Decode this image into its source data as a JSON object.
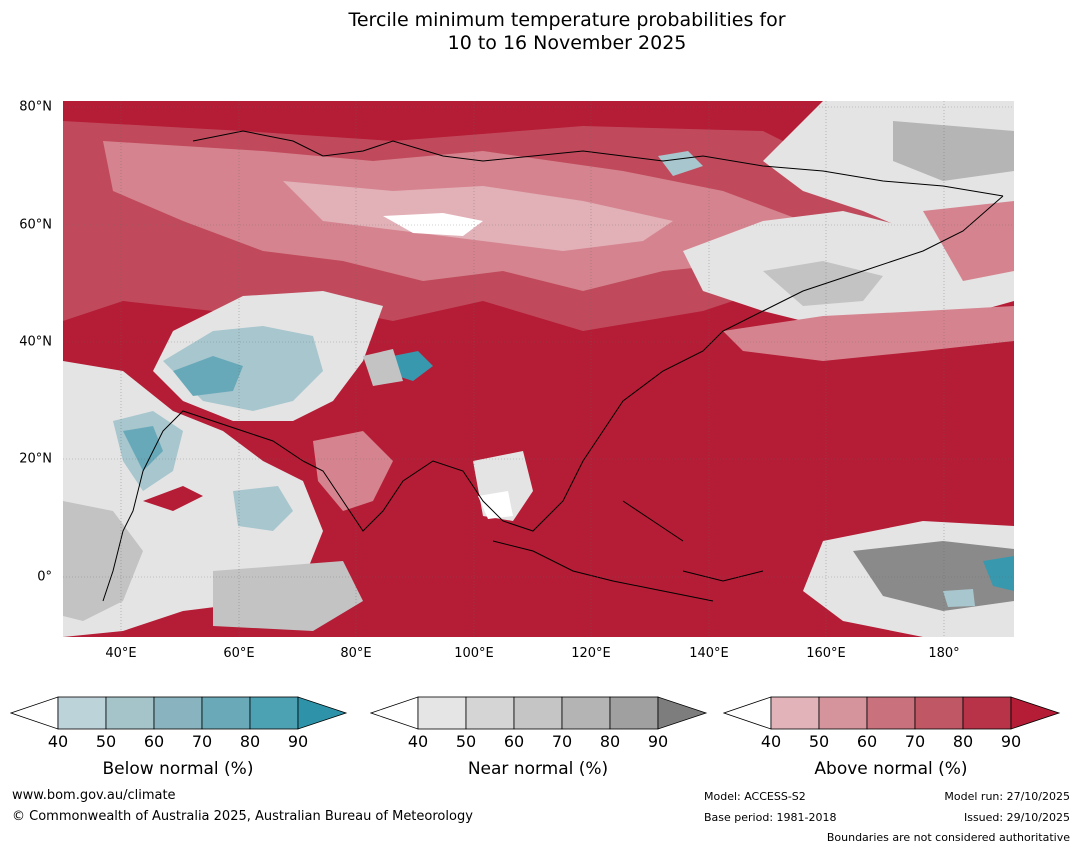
{
  "title": {
    "line1": "Tercile minimum temperature probabilities for",
    "line2": "10 to 16 November 2025"
  },
  "map": {
    "lat_labels": [
      "80°N",
      "60°N",
      "40°N",
      "20°N",
      "0°"
    ],
    "lon_labels": [
      "40°E",
      "60°E",
      "80°E",
      "100°E",
      "120°E",
      "140°E",
      "160°E",
      "180°"
    ],
    "colors": {
      "ocean_hot": "#b51c35",
      "warm": "#c04a5c",
      "warm_light": "#d5848f",
      "pink": "#e2b1b8",
      "near_light": "#e4e4e4",
      "near_mid": "#c3c3c3",
      "near_dark": "#8a8a8a",
      "cool_light": "#a7c6cd",
      "cool_mid": "#68a9b9",
      "cool_dark": "#3898ae",
      "white": "#ffffff"
    }
  },
  "colorbars": [
    {
      "label": "Below normal (%)",
      "ticks": [
        "40",
        "50",
        "60",
        "70",
        "80",
        "90"
      ],
      "colors": [
        "#ffffff",
        "#bdd3da",
        "#a5c4ca",
        "#88b3bf",
        "#6aaab8",
        "#4ca2b3",
        "#2e93a9"
      ]
    },
    {
      "label": "Near normal (%)",
      "ticks": [
        "40",
        "50",
        "60",
        "70",
        "80",
        "90"
      ],
      "colors": [
        "#ffffff",
        "#e5e5e5",
        "#d5d5d5",
        "#c5c5c5",
        "#b4b4b4",
        "#a0a0a0",
        "#7d7d7d"
      ]
    },
    {
      "label": "Above normal (%)",
      "ticks": [
        "40",
        "50",
        "60",
        "70",
        "80",
        "90"
      ],
      "colors": [
        "#ffffff",
        "#e2b3b9",
        "#d5949c",
        "#c9717c",
        "#c05765",
        "#b83347",
        "#b51c35"
      ]
    }
  ],
  "footer": {
    "website": "www.bom.gov.au/climate",
    "copyright": "© Commonwealth of Australia 2025, Australian Bureau of Meteorology",
    "model": "Model: ACCESS-S2",
    "base_period": "Base period: 1981-2018",
    "model_run": "Model run: 27/10/2025",
    "issued": "Issued: 29/10/2025",
    "disclaimer": "Boundaries are not considered authoritative"
  }
}
